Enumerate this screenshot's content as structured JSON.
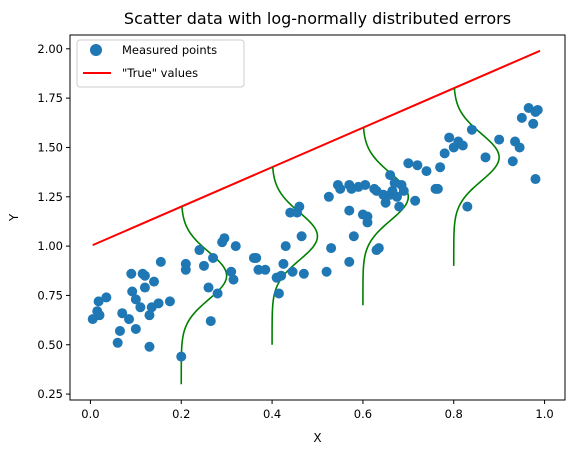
{
  "chart_data": {
    "type": "scatter",
    "title": "Scatter data with log-normally distributed errors",
    "xlabel": "X",
    "ylabel": "Y",
    "xlim": [
      -0.045,
      1.045
    ],
    "ylim": [
      0.22,
      2.07
    ],
    "xticks": [
      0.0,
      0.2,
      0.4,
      0.6,
      0.8,
      1.0
    ],
    "xtick_labels": [
      "0.0",
      "0.2",
      "0.4",
      "0.6",
      "0.8",
      "1.0"
    ],
    "yticks": [
      0.25,
      0.5,
      0.75,
      1.0,
      1.25,
      1.5,
      1.75,
      2.0
    ],
    "ytick_labels": [
      "0.25",
      "0.50",
      "0.75",
      "1.00",
      "1.25",
      "1.50",
      "1.75",
      "2.00"
    ],
    "grid": false,
    "legend_position": "top-left",
    "series": [
      {
        "name": "Measured points",
        "kind": "scatter",
        "color": "#1f77b4",
        "points": [
          [
            0.005,
            0.63
          ],
          [
            0.015,
            0.67
          ],
          [
            0.018,
            0.72
          ],
          [
            0.02,
            0.65
          ],
          [
            0.035,
            0.74
          ],
          [
            0.06,
            0.51
          ],
          [
            0.065,
            0.57
          ],
          [
            0.07,
            0.66
          ],
          [
            0.085,
            0.63
          ],
          [
            0.09,
            0.86
          ],
          [
            0.092,
            0.77
          ],
          [
            0.1,
            0.73
          ],
          [
            0.1,
            0.58
          ],
          [
            0.11,
            0.69
          ],
          [
            0.115,
            0.86
          ],
          [
            0.12,
            0.85
          ],
          [
            0.12,
            0.79
          ],
          [
            0.13,
            0.65
          ],
          [
            0.13,
            0.49
          ],
          [
            0.135,
            0.69
          ],
          [
            0.14,
            0.82
          ],
          [
            0.15,
            0.71
          ],
          [
            0.155,
            0.92
          ],
          [
            0.175,
            0.72
          ],
          [
            0.2,
            0.44
          ],
          [
            0.21,
            0.88
          ],
          [
            0.21,
            0.91
          ],
          [
            0.24,
            0.98
          ],
          [
            0.25,
            0.9
          ],
          [
            0.26,
            0.79
          ],
          [
            0.265,
            0.62
          ],
          [
            0.27,
            0.94
          ],
          [
            0.28,
            0.76
          ],
          [
            0.29,
            1.02
          ],
          [
            0.295,
            1.04
          ],
          [
            0.31,
            0.87
          ],
          [
            0.315,
            0.83
          ],
          [
            0.32,
            1.0
          ],
          [
            0.36,
            0.94
          ],
          [
            0.365,
            0.94
          ],
          [
            0.37,
            0.88
          ],
          [
            0.385,
            0.88
          ],
          [
            0.41,
            0.84
          ],
          [
            0.415,
            0.76
          ],
          [
            0.42,
            0.85
          ],
          [
            0.425,
            0.91
          ],
          [
            0.43,
            1.0
          ],
          [
            0.44,
            1.17
          ],
          [
            0.445,
            0.87
          ],
          [
            0.455,
            1.17
          ],
          [
            0.46,
            1.2
          ],
          [
            0.465,
            1.05
          ],
          [
            0.47,
            0.86
          ],
          [
            0.52,
            0.87
          ],
          [
            0.525,
            1.25
          ],
          [
            0.53,
            0.99
          ],
          [
            0.545,
            1.31
          ],
          [
            0.55,
            1.29
          ],
          [
            0.57,
            0.92
          ],
          [
            0.57,
            1.18
          ],
          [
            0.57,
            1.31
          ],
          [
            0.575,
            1.29
          ],
          [
            0.58,
            1.05
          ],
          [
            0.59,
            1.3
          ],
          [
            0.6,
            1.16
          ],
          [
            0.605,
            1.31
          ],
          [
            0.61,
            1.12
          ],
          [
            0.61,
            1.15
          ],
          [
            0.625,
            1.29
          ],
          [
            0.63,
            1.28
          ],
          [
            0.63,
            0.98
          ],
          [
            0.635,
            0.99
          ],
          [
            0.645,
            1.26
          ],
          [
            0.65,
            1.22
          ],
          [
            0.66,
            1.36
          ],
          [
            0.66,
            1.26
          ],
          [
            0.665,
            1.28
          ],
          [
            0.67,
            1.32
          ],
          [
            0.675,
            1.25
          ],
          [
            0.68,
            1.2
          ],
          [
            0.685,
            1.31
          ],
          [
            0.69,
            1.28
          ],
          [
            0.7,
            1.42
          ],
          [
            0.715,
            1.23
          ],
          [
            0.72,
            1.41
          ],
          [
            0.74,
            1.38
          ],
          [
            0.76,
            1.29
          ],
          [
            0.765,
            1.29
          ],
          [
            0.77,
            1.4
          ],
          [
            0.78,
            1.47
          ],
          [
            0.79,
            1.55
          ],
          [
            0.8,
            1.5
          ],
          [
            0.81,
            1.53
          ],
          [
            0.82,
            1.51
          ],
          [
            0.83,
            1.2
          ],
          [
            0.84,
            1.59
          ],
          [
            0.87,
            1.45
          ],
          [
            0.9,
            1.54
          ],
          [
            0.93,
            1.43
          ],
          [
            0.935,
            1.53
          ],
          [
            0.945,
            1.5
          ],
          [
            0.95,
            1.65
          ],
          [
            0.965,
            1.7
          ],
          [
            0.975,
            1.62
          ],
          [
            0.98,
            1.68
          ],
          [
            0.98,
            1.34
          ],
          [
            0.985,
            1.69
          ]
        ]
      },
      {
        "name": "\"True\" values",
        "kind": "line",
        "color": "#ff0000",
        "points": [
          [
            0.005,
            1.005
          ],
          [
            0.99,
            1.99
          ]
        ]
      }
    ],
    "error_curves": {
      "color": "#008000",
      "sigma": 0.12,
      "offset": -0.35,
      "curves": [
        {
          "x0": 0.2,
          "y_top": 1.2,
          "y_bottom": 0.3
        },
        {
          "x0": 0.4,
          "y_top": 1.4,
          "y_bottom": 0.5
        },
        {
          "x0": 0.6,
          "y_top": 1.6,
          "y_bottom": 0.7
        },
        {
          "x0": 0.8,
          "y_top": 1.8,
          "y_bottom": 0.9
        }
      ]
    }
  }
}
